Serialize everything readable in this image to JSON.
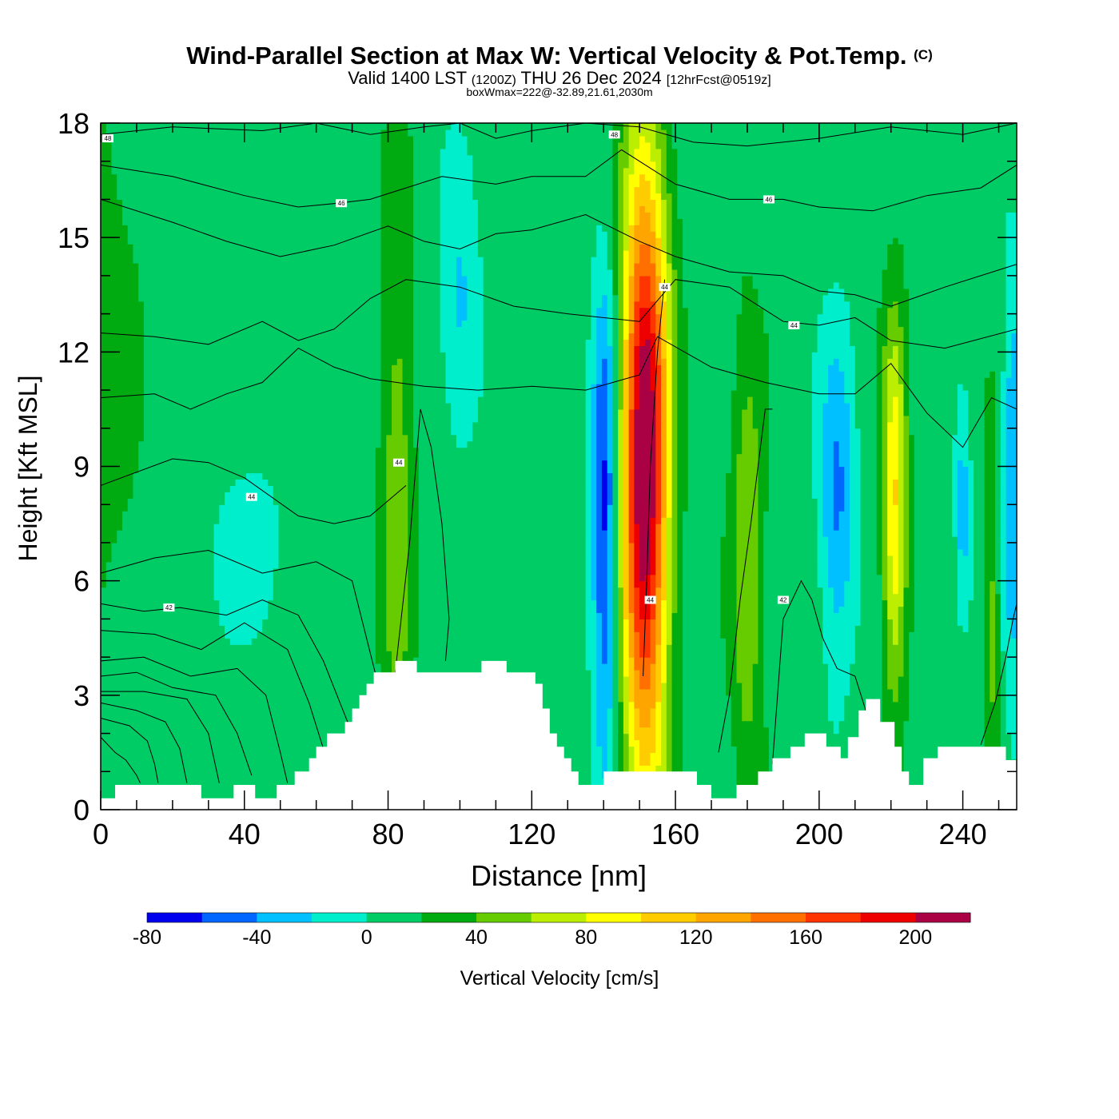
{
  "header": {
    "title_main": "Wind-Parallel Section at Max W: Vertical Velocity & Pot.Temp.",
    "copyright": "(C)",
    "valid_prefix": "Valid 1400 LST",
    "valid_zulu": "(1200Z)",
    "valid_date": "THU 26 Dec 2024",
    "forecast_info": "[12hrFcst@0519z]",
    "box_info": "boxWmax=222@-32.89,21.61,2030m"
  },
  "chart_data": {
    "type": "heatmap",
    "title": "Wind-Parallel Section at Max W: Vertical Velocity & Pot.Temp.",
    "xlabel": "Distance [nm]",
    "ylabel": "Height [Kft MSL]",
    "xlim": [
      0,
      255
    ],
    "ylim": [
      0,
      18
    ],
    "x_ticks": [
      0,
      40,
      80,
      120,
      160,
      200,
      240
    ],
    "y_ticks": [
      0,
      3,
      6,
      9,
      12,
      15,
      18
    ],
    "x_tick_labels": [
      "0",
      "40",
      "80",
      "120",
      "160",
      "200",
      "240"
    ],
    "y_tick_labels": [
      "0",
      "3",
      "6",
      "9",
      "12",
      "15",
      "18"
    ],
    "background_level": 10,
    "velocity_cells": [
      {
        "name": "updraft-80nm",
        "x": 82.5,
        "z": 8.5,
        "sx": 3.2,
        "sz": 5.5,
        "w": 45
      },
      {
        "name": "main-updraft",
        "x": 151.5,
        "z": 9.0,
        "sx": 4.6,
        "sz": 5.8,
        "w": 222
      },
      {
        "name": "main-downdraft",
        "x": 140.5,
        "z": 7.5,
        "sx": 2.6,
        "sz": 4.5,
        "w": -85
      },
      {
        "name": "updraft-180nm",
        "x": 180.0,
        "z": 6.5,
        "sx": 3.2,
        "sz": 4.2,
        "w": 50
      },
      {
        "name": "downdraft-205nm",
        "x": 205.0,
        "z": 8.0,
        "sx": 3.5,
        "sz": 3.0,
        "w": -55
      },
      {
        "name": "updraft-221nm",
        "x": 221.0,
        "z": 8.0,
        "sx": 2.4,
        "sz": 3.5,
        "w": 92
      },
      {
        "name": "downdraft-240nm",
        "x": 240.0,
        "z": 8.0,
        "sx": 1.5,
        "sz": 2.0,
        "w": -40
      },
      {
        "name": "updraft-248nm",
        "x": 248.0,
        "z": 5.0,
        "sx": 1.5,
        "sz": 3.0,
        "w": 40
      },
      {
        "name": "downdraft-254nm",
        "x": 254.0,
        "z": 8.5,
        "sx": 2.0,
        "sz": 4.0,
        "w": -50
      },
      {
        "name": "downdraft-100nm",
        "x": 100.0,
        "z": 13.0,
        "sx": 4.0,
        "sz": 2.5,
        "w": -35
      },
      {
        "name": "downdraft-40nm",
        "x": 42.0,
        "z": 6.8,
        "sx": 7.0,
        "sz": 1.5,
        "w": -25
      },
      {
        "name": "updraft-3nm",
        "x": 3.0,
        "z": 12.0,
        "sx": 6.0,
        "sz": 6.0,
        "w": 20
      }
    ],
    "terrain": {
      "x": [
        0,
        4,
        4,
        28,
        28,
        37,
        37,
        43,
        43,
        49,
        49,
        54,
        54,
        58,
        58,
        60,
        60,
        63,
        63,
        68,
        68,
        70,
        70,
        72,
        72,
        74,
        74,
        76,
        76,
        78,
        78,
        82,
        82,
        88,
        88,
        106,
        106,
        113,
        113,
        121,
        121,
        123,
        123,
        125,
        125,
        127,
        127,
        129,
        129,
        131,
        131,
        133,
        133,
        135,
        135,
        140,
        140,
        166,
        166,
        170,
        170,
        177,
        177,
        183,
        183,
        187,
        187,
        192,
        192,
        196,
        196,
        202,
        202,
        206,
        206,
        208,
        208,
        211,
        211,
        213,
        213,
        217,
        217,
        221,
        221,
        223,
        223,
        225,
        225,
        229,
        229,
        233,
        233,
        252,
        252,
        255
      ],
      "z": [
        0.3,
        0.3,
        0.65,
        0.65,
        0.3,
        0.3,
        0.65,
        0.65,
        0.3,
        0.3,
        0.65,
        0.65,
        1.0,
        1.0,
        1.35,
        1.35,
        1.65,
        1.65,
        2.0,
        2.0,
        2.3,
        2.3,
        2.65,
        2.65,
        3.0,
        3.0,
        3.3,
        3.3,
        3.6,
        3.6,
        3.6,
        3.6,
        3.9,
        3.9,
        3.6,
        3.6,
        3.9,
        3.9,
        3.6,
        3.6,
        3.3,
        3.3,
        2.65,
        2.65,
        2.0,
        2.0,
        1.65,
        1.65,
        1.35,
        1.35,
        1.0,
        1.0,
        0.65,
        0.65,
        0.65,
        0.65,
        1.0,
        1.0,
        0.65,
        0.65,
        0.3,
        0.3,
        0.65,
        0.65,
        1.0,
        1.0,
        1.35,
        1.35,
        1.65,
        1.65,
        2.0,
        2.0,
        1.65,
        1.65,
        1.35,
        1.35,
        1.9,
        1.9,
        2.6,
        2.6,
        2.9,
        2.9,
        2.3,
        2.3,
        1.65,
        1.65,
        1.0,
        1.0,
        0.65,
        0.65,
        1.35,
        1.35,
        1.65,
        1.65,
        1.3,
        1.3
      ]
    },
    "theta_isolines": [
      {
        "x": [
          0,
          20,
          45,
          60,
          75,
          90,
          100,
          110,
          120,
          135,
          150,
          165,
          180,
          200,
          220,
          240,
          255
        ],
        "z": [
          17.7,
          17.9,
          17.8,
          18.0,
          17.7,
          17.9,
          18.0,
          17.6,
          17.8,
          18.0,
          17.9,
          17.5,
          17.4,
          17.6,
          17.9,
          17.7,
          18.0
        ]
      },
      {
        "x": [
          0,
          20,
          40,
          55,
          66,
          75,
          85,
          95,
          110,
          120,
          135,
          145,
          160,
          175,
          190,
          200,
          215,
          230,
          245,
          255
        ],
        "z": [
          16.9,
          16.6,
          16.1,
          15.8,
          15.9,
          16.0,
          16.3,
          16.6,
          16.4,
          16.6,
          16.6,
          17.3,
          16.4,
          16.0,
          16.0,
          15.8,
          15.7,
          16.1,
          16.3,
          16.9
        ]
      },
      {
        "x": [
          0,
          20,
          35,
          50,
          65,
          80,
          90,
          100,
          110,
          120,
          135,
          150,
          160,
          175,
          190,
          200,
          210,
          220,
          235,
          255
        ],
        "z": [
          16.0,
          15.4,
          14.9,
          14.5,
          14.8,
          15.3,
          14.9,
          14.7,
          15.1,
          15.2,
          15.6,
          14.9,
          14.5,
          14.1,
          14.0,
          13.6,
          13.5,
          13.2,
          13.7,
          14.3
        ]
      },
      {
        "x": [
          0,
          15,
          30,
          45,
          55,
          65,
          75,
          85,
          100,
          115,
          130,
          150,
          160,
          175,
          190,
          200,
          210,
          220,
          235,
          255
        ],
        "z": [
          12.5,
          12.4,
          12.2,
          12.8,
          12.3,
          12.6,
          13.4,
          13.9,
          13.7,
          13.2,
          13.0,
          12.8,
          13.9,
          13.7,
          12.8,
          12.7,
          12.9,
          12.3,
          12.1,
          12.6
        ]
      },
      {
        "x": [
          0,
          15,
          25,
          35,
          45,
          55,
          65,
          75,
          90,
          105,
          120,
          135,
          150,
          155,
          170,
          185,
          200,
          210,
          220,
          230,
          240,
          248,
          255
        ],
        "z": [
          10.8,
          10.9,
          10.5,
          10.9,
          11.2,
          12.1,
          11.6,
          11.3,
          11.1,
          11.0,
          11.1,
          11.0,
          11.4,
          12.4,
          11.6,
          11.2,
          10.9,
          10.9,
          11.7,
          10.4,
          9.5,
          10.8,
          10.5
        ]
      },
      {
        "x": [
          0,
          20,
          30,
          40,
          55,
          65,
          75,
          85
        ],
        "z": [
          8.5,
          9.2,
          9.1,
          8.7,
          7.7,
          7.5,
          7.7,
          8.5
        ]
      },
      {
        "x": [
          0,
          15,
          30,
          45,
          60,
          70,
          78
        ],
        "z": [
          6.2,
          6.6,
          6.8,
          6.2,
          6.5,
          6.0,
          3.0
        ]
      },
      {
        "x": [
          0,
          12,
          22,
          35,
          45,
          55,
          62,
          70,
          76
        ],
        "z": [
          5.4,
          5.2,
          5.3,
          5.1,
          5.5,
          5.1,
          3.9,
          2.0,
          2.0
        ]
      },
      {
        "x": [
          0,
          15,
          28,
          40,
          52,
          58,
          62
        ],
        "z": [
          4.7,
          4.6,
          4.2,
          4.9,
          4.2,
          2.8,
          1.6
        ]
      },
      {
        "x": [
          0,
          12,
          25,
          38,
          46,
          50,
          52
        ],
        "z": [
          3.9,
          4.0,
          3.5,
          3.7,
          3.0,
          1.5,
          0.7
        ]
      },
      {
        "x": [
          0,
          10,
          20,
          32,
          38,
          42
        ],
        "z": [
          3.5,
          3.6,
          3.2,
          3.0,
          2.0,
          0.9
        ]
      },
      {
        "x": [
          0,
          12,
          24,
          30,
          33
        ],
        "z": [
          3.1,
          3.1,
          2.9,
          2.0,
          0.7
        ]
      },
      {
        "x": [
          0,
          10,
          18,
          22,
          24
        ],
        "z": [
          2.8,
          2.6,
          2.3,
          1.6,
          0.7
        ]
      },
      {
        "x": [
          0,
          8,
          13,
          15,
          16
        ],
        "z": [
          2.4,
          2.2,
          1.8,
          1.2,
          0.7
        ]
      },
      {
        "x": [
          0,
          4,
          7,
          10,
          11
        ],
        "z": [
          1.9,
          1.5,
          1.3,
          0.9,
          0.7
        ]
      },
      {
        "x": [
          82,
          86,
          89,
          92,
          95,
          97,
          96
        ],
        "z": [
          3.6,
          7.0,
          10.5,
          9.5,
          7.5,
          5.0,
          3.9
        ]
      },
      {
        "x": [
          151,
          152,
          153,
          155,
          157
        ],
        "z": [
          3.5,
          6.0,
          9.0,
          12.0,
          13.9
        ]
      },
      {
        "x": [
          172,
          175,
          178,
          181,
          185,
          187
        ],
        "z": [
          1.5,
          3.0,
          5.5,
          7.5,
          10.5,
          10.5
        ]
      },
      {
        "x": [
          187,
          190,
          195,
          198,
          201,
          205,
          210,
          213
        ],
        "z": [
          1.2,
          5.0,
          6.0,
          5.5,
          4.5,
          3.7,
          3.5,
          2.6
        ]
      },
      {
        "x": [
          245,
          249,
          252,
          254,
          255
        ],
        "z": [
          1.7,
          2.8,
          4.0,
          5.0,
          5.4
        ]
      }
    ],
    "theta_labels": [
      {
        "text": "48",
        "x": 2,
        "z": 17.6
      },
      {
        "text": "48",
        "x": 143,
        "z": 17.7
      },
      {
        "text": "46",
        "x": 67,
        "z": 15.9
      },
      {
        "text": "46",
        "x": 186,
        "z": 16.0
      },
      {
        "text": "44",
        "x": 157,
        "z": 13.7
      },
      {
        "text": "44",
        "x": 193,
        "z": 12.7
      },
      {
        "text": "44",
        "x": 83,
        "z": 9.1
      },
      {
        "text": "44",
        "x": 42,
        "z": 8.2
      },
      {
        "text": "42",
        "x": 19,
        "z": 5.3
      },
      {
        "text": "44",
        "x": 153,
        "z": 5.5
      },
      {
        "text": "42",
        "x": 190,
        "z": 5.5
      }
    ]
  },
  "colorbar": {
    "title": "Vertical Velocity [cm/s]",
    "levels": [
      -80,
      -60,
      -40,
      -20,
      0,
      20,
      40,
      60,
      80,
      100,
      120,
      140,
      160,
      180,
      200,
      220
    ],
    "colors": [
      "#0000ee",
      "#0066ff",
      "#00c0ff",
      "#00eecc",
      "#00cc66",
      "#00aa11",
      "#66cc00",
      "#bbee00",
      "#ffff00",
      "#ffcc00",
      "#ffa500",
      "#ff7000",
      "#ff3500",
      "#ee0000",
      "#aa0044"
    ],
    "tick_values": [
      -80,
      -40,
      0,
      40,
      80,
      120,
      160,
      200
    ],
    "tick_labels": [
      "-80",
      "-40",
      "0",
      "40",
      "80",
      "120",
      "160",
      "200"
    ]
  }
}
